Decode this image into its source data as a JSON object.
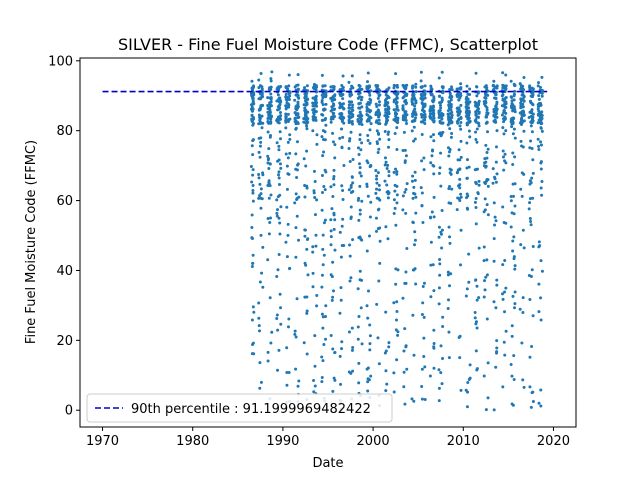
{
  "chart_data": {
    "type": "scatter",
    "title": "SILVER - Fine Fuel Moisture Code (FFMC), Scatterplot",
    "xlabel": "Date",
    "ylabel": "Fine Fuel Moisture Code (FFMC)",
    "xlim": [
      1967.5,
      2022.5
    ],
    "ylim": [
      -4.8,
      100.8
    ],
    "xticks": [
      1970,
      1980,
      1990,
      2000,
      2010,
      2020
    ],
    "yticks": [
      0,
      20,
      40,
      60,
      80,
      100
    ],
    "data_range": {
      "x_start": 1986.5,
      "x_end": 2018.8,
      "y_min": 0,
      "y_max": 97
    },
    "series": [
      {
        "name": "FFMC",
        "kind": "points",
        "color": "#1f77b4",
        "marker": "dot"
      }
    ],
    "reference_lines": [
      {
        "label": "90th percentile : 91.1999969482422",
        "y": 91.1999969482422,
        "x_range": [
          1970,
          2019.3
        ],
        "color": "#0000cc",
        "style": "dashed"
      }
    ],
    "legend_position": "lower-left",
    "grid": false
  }
}
